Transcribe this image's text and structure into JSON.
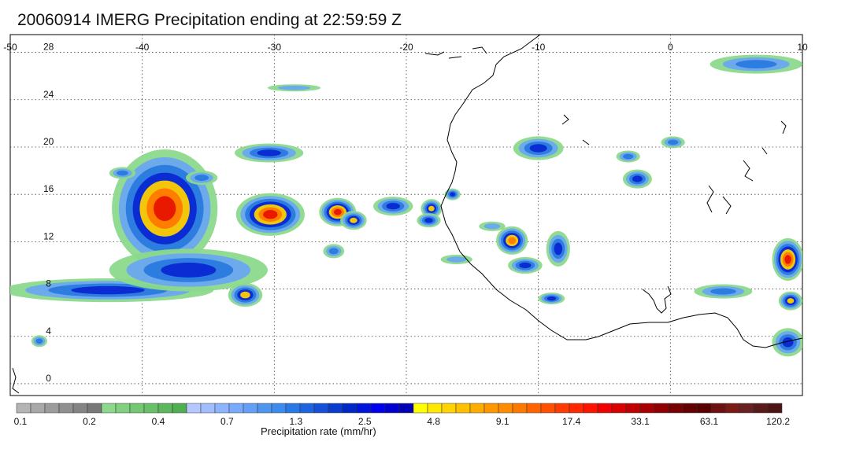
{
  "title": "20060914 IMERG Precipitation ending at 22:59:59 Z",
  "map": {
    "lon_range": [
      -50,
      10
    ],
    "lat_range": [
      -1,
      29.5
    ],
    "lon_ticks": [
      -50,
      -40,
      -30,
      -20,
      -10,
      0,
      10
    ],
    "lon_tick_labels": [
      "-50",
      "-40",
      "-30",
      "-20",
      "-10",
      "0",
      "10"
    ],
    "lat_ticks": [
      0,
      4,
      8,
      12,
      16,
      20,
      24,
      28
    ],
    "lat_tick_labels": [
      "0",
      "4",
      "8",
      "12",
      "16",
      "20",
      "24",
      "28"
    ],
    "grid": "dotted",
    "coastline_color": "#000000",
    "precip_cells": [
      {
        "lon": -38.3,
        "lat": 14.8,
        "rx": 4.0,
        "ry": 5.0,
        "peak": 6
      },
      {
        "lon": -30.3,
        "lat": 14.3,
        "rx": 2.6,
        "ry": 1.8,
        "peak": 6
      },
      {
        "lon": -42.6,
        "lat": 7.9,
        "rx": 8.0,
        "ry": 1.0,
        "peak": 3
      },
      {
        "lon": -36.5,
        "lat": 9.6,
        "rx": 6.0,
        "ry": 1.8,
        "peak": 3
      },
      {
        "lon": -32.2,
        "lat": 7.5,
        "rx": 1.3,
        "ry": 1.0,
        "peak": 4
      },
      {
        "lon": -30.4,
        "lat": 19.5,
        "rx": 2.6,
        "ry": 0.8,
        "peak": 3
      },
      {
        "lon": -25.2,
        "lat": 14.5,
        "rx": 1.4,
        "ry": 1.2,
        "peak": 6
      },
      {
        "lon": -24.0,
        "lat": 13.8,
        "rx": 1.0,
        "ry": 0.8,
        "peak": 4
      },
      {
        "lon": -21.0,
        "lat": 15.0,
        "rx": 1.5,
        "ry": 0.8,
        "peak": 3
      },
      {
        "lon": -18.1,
        "lat": 14.8,
        "rx": 0.8,
        "ry": 0.8,
        "peak": 4
      },
      {
        "lon": -18.3,
        "lat": 13.8,
        "rx": 0.9,
        "ry": 0.6,
        "peak": 3
      },
      {
        "lon": -16.5,
        "lat": 16.0,
        "rx": 0.6,
        "ry": 0.5,
        "peak": 3
      },
      {
        "lon": -12.0,
        "lat": 12.1,
        "rx": 1.2,
        "ry": 1.2,
        "peak": 5
      },
      {
        "lon": -11.0,
        "lat": 10.0,
        "rx": 1.3,
        "ry": 0.7,
        "peak": 3
      },
      {
        "lon": -8.5,
        "lat": 11.4,
        "rx": 0.9,
        "ry": 1.5,
        "peak": 3
      },
      {
        "lon": -10.0,
        "lat": 19.9,
        "rx": 1.9,
        "ry": 1.0,
        "peak": 3
      },
      {
        "lon": -2.5,
        "lat": 17.3,
        "rx": 1.1,
        "ry": 0.8,
        "peak": 3
      },
      {
        "lon": -3.2,
        "lat": 19.2,
        "rx": 0.9,
        "ry": 0.5,
        "peak": 2
      },
      {
        "lon": 0.2,
        "lat": 20.4,
        "rx": 0.9,
        "ry": 0.5,
        "peak": 2
      },
      {
        "lon": -9.0,
        "lat": 7.2,
        "rx": 1.0,
        "ry": 0.5,
        "peak": 3
      },
      {
        "lon": 8.9,
        "lat": 10.5,
        "rx": 1.2,
        "ry": 1.8,
        "peak": 6
      },
      {
        "lon": 9.1,
        "lat": 7.0,
        "rx": 0.9,
        "ry": 0.8,
        "peak": 4
      },
      {
        "lon": 8.9,
        "lat": 3.5,
        "rx": 1.2,
        "ry": 1.2,
        "peak": 3
      },
      {
        "lon": 4.0,
        "lat": 7.8,
        "rx": 2.2,
        "ry": 0.6,
        "peak": 2
      },
      {
        "lon": 6.5,
        "lat": 27.0,
        "rx": 3.5,
        "ry": 0.8,
        "peak": 2
      },
      {
        "lon": -25.5,
        "lat": 11.2,
        "rx": 0.8,
        "ry": 0.6,
        "peak": 2
      },
      {
        "lon": -47.8,
        "lat": 3.6,
        "rx": 0.6,
        "ry": 0.5,
        "peak": 2
      },
      {
        "lon": -41.5,
        "lat": 17.8,
        "rx": 1.0,
        "ry": 0.5,
        "peak": 2
      },
      {
        "lon": -35.5,
        "lat": 17.4,
        "rx": 1.2,
        "ry": 0.6,
        "peak": 2
      },
      {
        "lon": -28.5,
        "lat": 25.0,
        "rx": 2.0,
        "ry": 0.3,
        "peak": 1
      },
      {
        "lon": -16.2,
        "lat": 10.5,
        "rx": 1.2,
        "ry": 0.4,
        "peak": 1
      },
      {
        "lon": -13.5,
        "lat": 13.3,
        "rx": 1.0,
        "ry": 0.4,
        "peak": 1
      }
    ]
  },
  "colorbar": {
    "title": "Precipitation rate (mm/hr)",
    "colors": [
      "#b4b4b4",
      "#a8a8a8",
      "#9c9c9c",
      "#909090",
      "#848484",
      "#787878",
      "#8cd98c",
      "#80d080",
      "#74c874",
      "#68c068",
      "#5cb85c",
      "#50b050",
      "#b4c8ff",
      "#a0beff",
      "#8cb4ff",
      "#78aaff",
      "#64a0f8",
      "#5096f0",
      "#3c8cf0",
      "#2878e8",
      "#1e64e0",
      "#1450d8",
      "#0a3cd0",
      "#0028c8",
      "#0014dc",
      "#0000f0",
      "#0000d0",
      "#0000b4",
      "#ffff00",
      "#ffe800",
      "#ffd400",
      "#ffc000",
      "#ffac00",
      "#ff9800",
      "#ff8c00",
      "#ff7800",
      "#ff6400",
      "#ff5000",
      "#ff3c00",
      "#ff2800",
      "#ff1400",
      "#f00000",
      "#d80000",
      "#c00000",
      "#a80000",
      "#900000",
      "#780000",
      "#640000",
      "#5a0000",
      "#6e1010",
      "#7a1a14",
      "#682020",
      "#5a1a1a",
      "#4c1414"
    ],
    "tick_labels": [
      "0.1",
      "0.2",
      "0.4",
      "0.7",
      "1.3",
      "2.5",
      "4.8",
      "9.1",
      "17.4",
      "33.1",
      "63.1",
      "120.2"
    ]
  }
}
